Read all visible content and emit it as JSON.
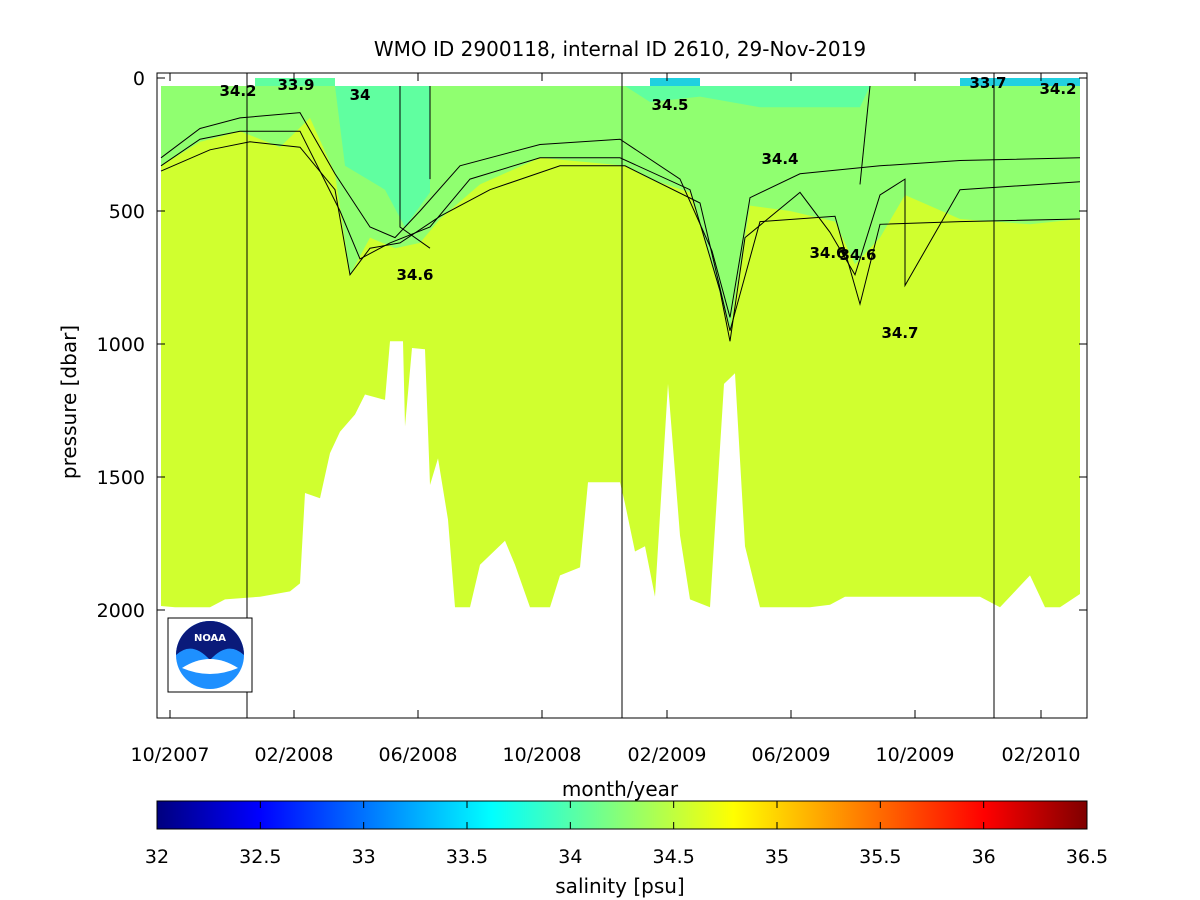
{
  "chart_data": {
    "type": "heatmap",
    "title": "WMO ID 2900118, internal ID 2610, 29-Nov-2019",
    "xlabel": "month/year",
    "ylabel": "pressure [dbar]",
    "colorbar_label": "salinity [psu]",
    "x_ticks": [
      "10/2007",
      "02/2008",
      "06/2008",
      "10/2008",
      "02/2009",
      "06/2009",
      "10/2009",
      "02/2010"
    ],
    "y_ticks": [
      "0",
      "500",
      "1000",
      "1500",
      "2000"
    ],
    "y_range": [
      -30,
      2400
    ],
    "colorbar_ticks": [
      "32",
      "32.5",
      "33",
      "33.5",
      "34",
      "34.5",
      "35",
      "35.5",
      "36",
      "36.5"
    ],
    "colorbar_range": [
      32,
      36.5
    ],
    "colors": {
      "deep_water": "#d0ff2f",
      "intermediate_water": "#90ff70",
      "surface_water": "#60ffa0",
      "surface_fresh": "#20d0e0",
      "no_data": "#ffffff"
    },
    "year_boundaries": [
      "01/2008",
      "01/2009",
      "01/2010"
    ],
    "contour_labels": [
      {
        "text": "34.2"
      },
      {
        "text": "33.9"
      },
      {
        "text": "34"
      },
      {
        "text": "34.5"
      },
      {
        "text": "34.4"
      },
      {
        "text": "34.6"
      },
      {
        "text": "34.6"
      },
      {
        "text": "34.6"
      },
      {
        "text": "34.7"
      },
      {
        "text": "33.7"
      },
      {
        "text": "34.2"
      }
    ],
    "logo": "NOAA"
  }
}
